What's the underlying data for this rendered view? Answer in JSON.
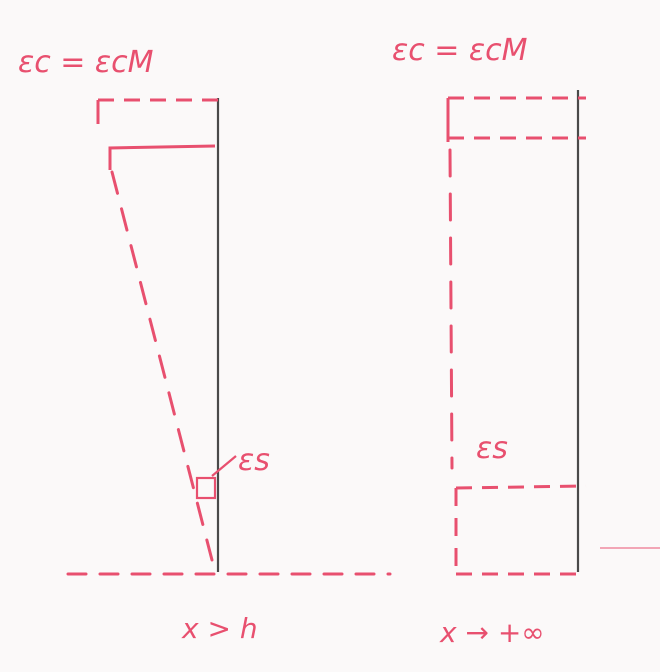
{
  "diagram": {
    "colors": {
      "paper": "#fbf9f9",
      "pen_red": "#e8506f",
      "pencil": "#4a4a4a"
    },
    "left": {
      "top_label": "εc = εcM",
      "steel_label": "εs",
      "bottom_label": "x > h"
    },
    "right": {
      "top_label": "εc = εcM",
      "steel_label": "εs",
      "bottom_label": "x → +∞"
    }
  }
}
